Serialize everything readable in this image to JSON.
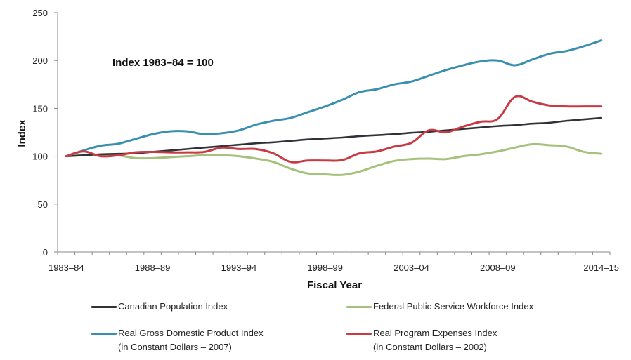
{
  "chart_data": {
    "type": "line",
    "title": "",
    "annotation": "Index 1983–84 = 100",
    "xlabel": "Fiscal Year",
    "ylabel": "Index",
    "ylim": [
      0,
      250
    ],
    "yticks": [
      0,
      50,
      100,
      150,
      200,
      250
    ],
    "grid": false,
    "legend_position": "bottom",
    "x": [
      "1983–84",
      "1984–85",
      "1985–86",
      "1986–87",
      "1987–88",
      "1988–89",
      "1989–90",
      "1990–91",
      "1991–92",
      "1992–93",
      "1993–94",
      "1994–95",
      "1995–96",
      "1996–97",
      "1997–98",
      "1998–99",
      "1999–00",
      "2000–01",
      "2001–02",
      "2002–03",
      "2003–04",
      "2004–05",
      "2005–06",
      "2006–07",
      "2007–08",
      "2008–09",
      "2009–10",
      "2010–11",
      "2011–12",
      "2012–13",
      "2013–14",
      "2014–15"
    ],
    "xtick_labels": [
      "1983–84",
      "1988–89",
      "1993–94",
      "1998–99",
      "2003–04",
      "2008–09",
      "2014–15"
    ],
    "xtick_label_indices": [
      0,
      5,
      10,
      15,
      20,
      25,
      31
    ],
    "series": [
      {
        "name": "Canadian Population Index",
        "legend_lines": [
          "Canadian Population Index"
        ],
        "color": "#2f3236",
        "values": [
          100,
          101,
          102,
          102.5,
          103,
          104.5,
          106,
          107.5,
          109,
          110.5,
          112,
          113.5,
          114.5,
          116,
          117.5,
          118.5,
          119.5,
          121,
          122,
          123,
          124.5,
          125.5,
          127,
          128.5,
          130,
          131.5,
          132.5,
          134,
          135,
          137,
          138.5,
          140
        ]
      },
      {
        "name": "Federal Public Service Workforce Index",
        "legend_lines": [
          "Federal Public Service Workforce Index"
        ],
        "color": "#a6c17b",
        "values": [
          100,
          101,
          101.5,
          101,
          98,
          98,
          99,
          100,
          101,
          101,
          100,
          97.5,
          94,
          87,
          82,
          81,
          80.5,
          84,
          90,
          95,
          97,
          97.5,
          97,
          100,
          102,
          105,
          109,
          112.5,
          111.5,
          110,
          104.5,
          102.5
        ]
      },
      {
        "name": "Real Gross Domestic Product Index (in Constant Dollars – 2007)",
        "legend_lines": [
          "Real Gross Domestic Product  Index",
          "(in Constant Dollars – 2007)"
        ],
        "color": "#3a8fae",
        "values": [
          100,
          106,
          111,
          113,
          118,
          123,
          126,
          126,
          123,
          124,
          127,
          133,
          137,
          140,
          146,
          152,
          159,
          167,
          170,
          175,
          178,
          184,
          190,
          195,
          199,
          200,
          195,
          201,
          207,
          210,
          215,
          221
        ]
      },
      {
        "name": "Real Program Expenses Index (in Constant Dollars – 2002)",
        "legend_lines": [
          "Real Program Expenses Index",
          "(in Constant Dollars – 2002)"
        ],
        "color": "#c73b45",
        "values": [
          100,
          105,
          100,
          101,
          104,
          104.5,
          104,
          104,
          104.5,
          109,
          107.5,
          107.5,
          103,
          94,
          95.5,
          95.5,
          96,
          103,
          105,
          110,
          114,
          127,
          125,
          131,
          136,
          139,
          162,
          157,
          153,
          152,
          152,
          152
        ]
      }
    ]
  }
}
